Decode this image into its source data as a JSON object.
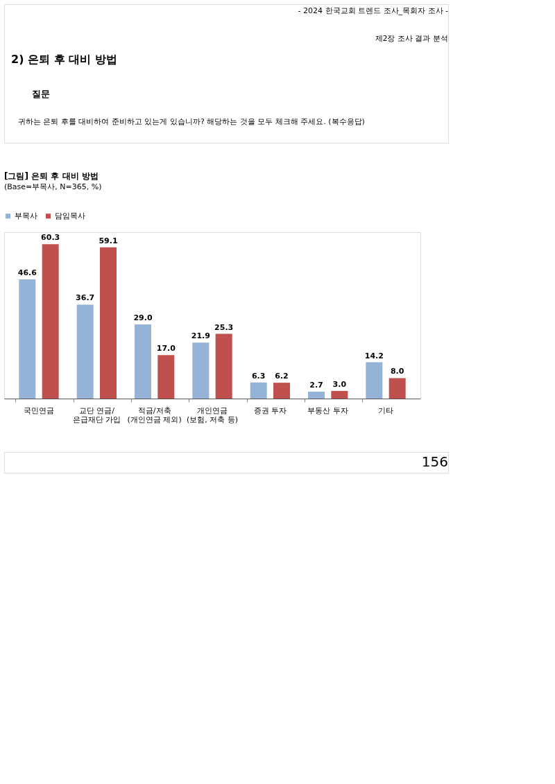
{
  "chart_data": {
    "type": "bar",
    "title": "[그림] 은퇴 후 대비 방법",
    "categories": [
      "국민연금",
      "교단 연금/\n은급재단 가입",
      "적금/저축\n(개인연금 제외)",
      "개인연금\n(보험, 저축 등)",
      "증권 투자",
      "부동산 투자",
      "기타"
    ],
    "series": [
      {
        "name": "부목사",
        "color": "#95b3d7",
        "values": [
          46.6,
          36.7,
          29.0,
          21.9,
          6.3,
          2.7,
          14.2
        ],
        "value_labels": [
          "46.6",
          "36.7",
          "29.0",
          "21.9",
          "6.3",
          "2.7",
          "14.2"
        ]
      },
      {
        "name": "담임목사",
        "color": "#c0504d",
        "values": [
          60.3,
          59.1,
          17.0,
          25.3,
          6.2,
          3.0,
          8.0
        ],
        "value_labels": [
          "60.3",
          "59.1",
          "17.0",
          "25.3",
          "6.2",
          "3.0",
          "8.0"
        ]
      }
    ],
    "legend": "top",
    "annotations": [
      "- 2024 한국교회 트렌드 조사_목회자 조사 -",
      "제2장 조사 결과 분석",
      "2) 은퇴 후 대비 방법",
      "질문",
      "귀하는 은퇴 후를 대비하여 준비하고 있는게 있습니까? 해당하는 것을 모두 체크해 주세요. (복수응답)",
      "(Base=부목사, N=365, %)",
      "156"
    ]
  }
}
